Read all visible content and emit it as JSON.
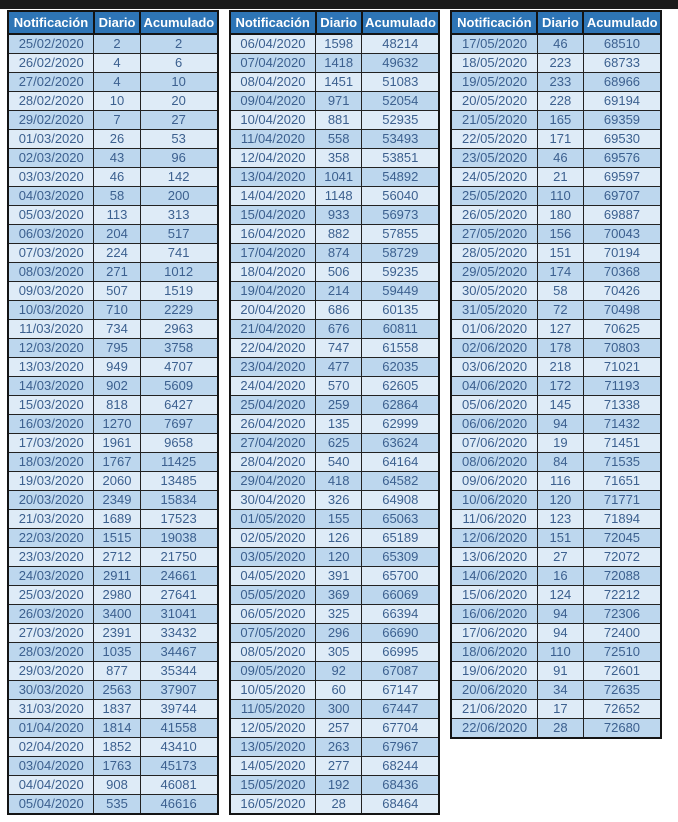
{
  "columns": [
    "Notificación",
    "Diario",
    "Acumulado"
  ],
  "colors": {
    "top_bar": "#1b1b1b",
    "header_bg": "#2e75b6",
    "header_text": "#ffffff",
    "row_medium": "#bdd7ee",
    "row_light": "#deebf7",
    "cell_text": "#3c608f",
    "grid": "#141414"
  },
  "tables": [
    {
      "start_shade": "medium",
      "rows": [
        [
          "25/02/2020",
          "2",
          "2"
        ],
        [
          "26/02/2020",
          "4",
          "6"
        ],
        [
          "27/02/2020",
          "4",
          "10"
        ],
        [
          "28/02/2020",
          "10",
          "20"
        ],
        [
          "29/02/2020",
          "7",
          "27"
        ],
        [
          "01/03/2020",
          "26",
          "53"
        ],
        [
          "02/03/2020",
          "43",
          "96"
        ],
        [
          "03/03/2020",
          "46",
          "142"
        ],
        [
          "04/03/2020",
          "58",
          "200"
        ],
        [
          "05/03/2020",
          "113",
          "313"
        ],
        [
          "06/03/2020",
          "204",
          "517"
        ],
        [
          "07/03/2020",
          "224",
          "741"
        ],
        [
          "08/03/2020",
          "271",
          "1012"
        ],
        [
          "09/03/2020",
          "507",
          "1519"
        ],
        [
          "10/03/2020",
          "710",
          "2229"
        ],
        [
          "11/03/2020",
          "734",
          "2963"
        ],
        [
          "12/03/2020",
          "795",
          "3758"
        ],
        [
          "13/03/2020",
          "949",
          "4707"
        ],
        [
          "14/03/2020",
          "902",
          "5609"
        ],
        [
          "15/03/2020",
          "818",
          "6427"
        ],
        [
          "16/03/2020",
          "1270",
          "7697"
        ],
        [
          "17/03/2020",
          "1961",
          "9658"
        ],
        [
          "18/03/2020",
          "1767",
          "11425"
        ],
        [
          "19/03/2020",
          "2060",
          "13485"
        ],
        [
          "20/03/2020",
          "2349",
          "15834"
        ],
        [
          "21/03/2020",
          "1689",
          "17523"
        ],
        [
          "22/03/2020",
          "1515",
          "19038"
        ],
        [
          "23/03/2020",
          "2712",
          "21750"
        ],
        [
          "24/03/2020",
          "2911",
          "24661"
        ],
        [
          "25/03/2020",
          "2980",
          "27641"
        ],
        [
          "26/03/2020",
          "3400",
          "31041"
        ],
        [
          "27/03/2020",
          "2391",
          "33432"
        ],
        [
          "28/03/2020",
          "1035",
          "34467"
        ],
        [
          "29/03/2020",
          "877",
          "35344"
        ],
        [
          "30/03/2020",
          "2563",
          "37907"
        ],
        [
          "31/03/2020",
          "1837",
          "39744"
        ],
        [
          "01/04/2020",
          "1814",
          "41558"
        ],
        [
          "02/04/2020",
          "1852",
          "43410"
        ],
        [
          "03/04/2020",
          "1763",
          "45173"
        ],
        [
          "04/04/2020",
          "908",
          "46081"
        ],
        [
          "05/04/2020",
          "535",
          "46616"
        ]
      ]
    },
    {
      "start_shade": "light",
      "rows": [
        [
          "06/04/2020",
          "1598",
          "48214"
        ],
        [
          "07/04/2020",
          "1418",
          "49632"
        ],
        [
          "08/04/2020",
          "1451",
          "51083"
        ],
        [
          "09/04/2020",
          "971",
          "52054"
        ],
        [
          "10/04/2020",
          "881",
          "52935"
        ],
        [
          "11/04/2020",
          "558",
          "53493"
        ],
        [
          "12/04/2020",
          "358",
          "53851"
        ],
        [
          "13/04/2020",
          "1041",
          "54892"
        ],
        [
          "14/04/2020",
          "1148",
          "56040"
        ],
        [
          "15/04/2020",
          "933",
          "56973"
        ],
        [
          "16/04/2020",
          "882",
          "57855"
        ],
        [
          "17/04/2020",
          "874",
          "58729"
        ],
        [
          "18/04/2020",
          "506",
          "59235"
        ],
        [
          "19/04/2020",
          "214",
          "59449"
        ],
        [
          "20/04/2020",
          "686",
          "60135"
        ],
        [
          "21/04/2020",
          "676",
          "60811"
        ],
        [
          "22/04/2020",
          "747",
          "61558"
        ],
        [
          "23/04/2020",
          "477",
          "62035"
        ],
        [
          "24/04/2020",
          "570",
          "62605"
        ],
        [
          "25/04/2020",
          "259",
          "62864"
        ],
        [
          "26/04/2020",
          "135",
          "62999"
        ],
        [
          "27/04/2020",
          "625",
          "63624"
        ],
        [
          "28/04/2020",
          "540",
          "64164"
        ],
        [
          "29/04/2020",
          "418",
          "64582"
        ],
        [
          "30/04/2020",
          "326",
          "64908"
        ],
        [
          "01/05/2020",
          "155",
          "65063"
        ],
        [
          "02/05/2020",
          "126",
          "65189"
        ],
        [
          "03/05/2020",
          "120",
          "65309"
        ],
        [
          "04/05/2020",
          "391",
          "65700"
        ],
        [
          "05/05/2020",
          "369",
          "66069"
        ],
        [
          "06/05/2020",
          "325",
          "66394"
        ],
        [
          "07/05/2020",
          "296",
          "66690"
        ],
        [
          "08/05/2020",
          "305",
          "66995"
        ],
        [
          "09/05/2020",
          "92",
          "67087"
        ],
        [
          "10/05/2020",
          "60",
          "67147"
        ],
        [
          "11/05/2020",
          "300",
          "67447"
        ],
        [
          "12/05/2020",
          "257",
          "67704"
        ],
        [
          "13/05/2020",
          "263",
          "67967"
        ],
        [
          "14/05/2020",
          "277",
          "68244"
        ],
        [
          "15/05/2020",
          "192",
          "68436"
        ],
        [
          "16/05/2020",
          "28",
          "68464"
        ]
      ]
    },
    {
      "start_shade": "medium",
      "rows": [
        [
          "17/05/2020",
          "46",
          "68510"
        ],
        [
          "18/05/2020",
          "223",
          "68733"
        ],
        [
          "19/05/2020",
          "233",
          "68966"
        ],
        [
          "20/05/2020",
          "228",
          "69194"
        ],
        [
          "21/05/2020",
          "165",
          "69359"
        ],
        [
          "22/05/2020",
          "171",
          "69530"
        ],
        [
          "23/05/2020",
          "46",
          "69576"
        ],
        [
          "24/05/2020",
          "21",
          "69597"
        ],
        [
          "25/05/2020",
          "110",
          "69707"
        ],
        [
          "26/05/2020",
          "180",
          "69887"
        ],
        [
          "27/05/2020",
          "156",
          "70043"
        ],
        [
          "28/05/2020",
          "151",
          "70194"
        ],
        [
          "29/05/2020",
          "174",
          "70368"
        ],
        [
          "30/05/2020",
          "58",
          "70426"
        ],
        [
          "31/05/2020",
          "72",
          "70498"
        ],
        [
          "01/06/2020",
          "127",
          "70625"
        ],
        [
          "02/06/2020",
          "178",
          "70803"
        ],
        [
          "03/06/2020",
          "218",
          "71021"
        ],
        [
          "04/06/2020",
          "172",
          "71193"
        ],
        [
          "05/06/2020",
          "145",
          "71338"
        ],
        [
          "06/06/2020",
          "94",
          "71432"
        ],
        [
          "07/06/2020",
          "19",
          "71451"
        ],
        [
          "08/06/2020",
          "84",
          "71535"
        ],
        [
          "09/06/2020",
          "116",
          "71651"
        ],
        [
          "10/06/2020",
          "120",
          "71771"
        ],
        [
          "11/06/2020",
          "123",
          "71894"
        ],
        [
          "12/06/2020",
          "151",
          "72045"
        ],
        [
          "13/06/2020",
          "27",
          "72072"
        ],
        [
          "14/06/2020",
          "16",
          "72088"
        ],
        [
          "15/06/2020",
          "124",
          "72212"
        ],
        [
          "16/06/2020",
          "94",
          "72306"
        ],
        [
          "17/06/2020",
          "94",
          "72400"
        ],
        [
          "18/06/2020",
          "110",
          "72510"
        ],
        [
          "19/06/2020",
          "91",
          "72601"
        ],
        [
          "20/06/2020",
          "34",
          "72635"
        ],
        [
          "21/06/2020",
          "17",
          "72652"
        ],
        [
          "22/06/2020",
          "28",
          "72680"
        ]
      ]
    }
  ]
}
